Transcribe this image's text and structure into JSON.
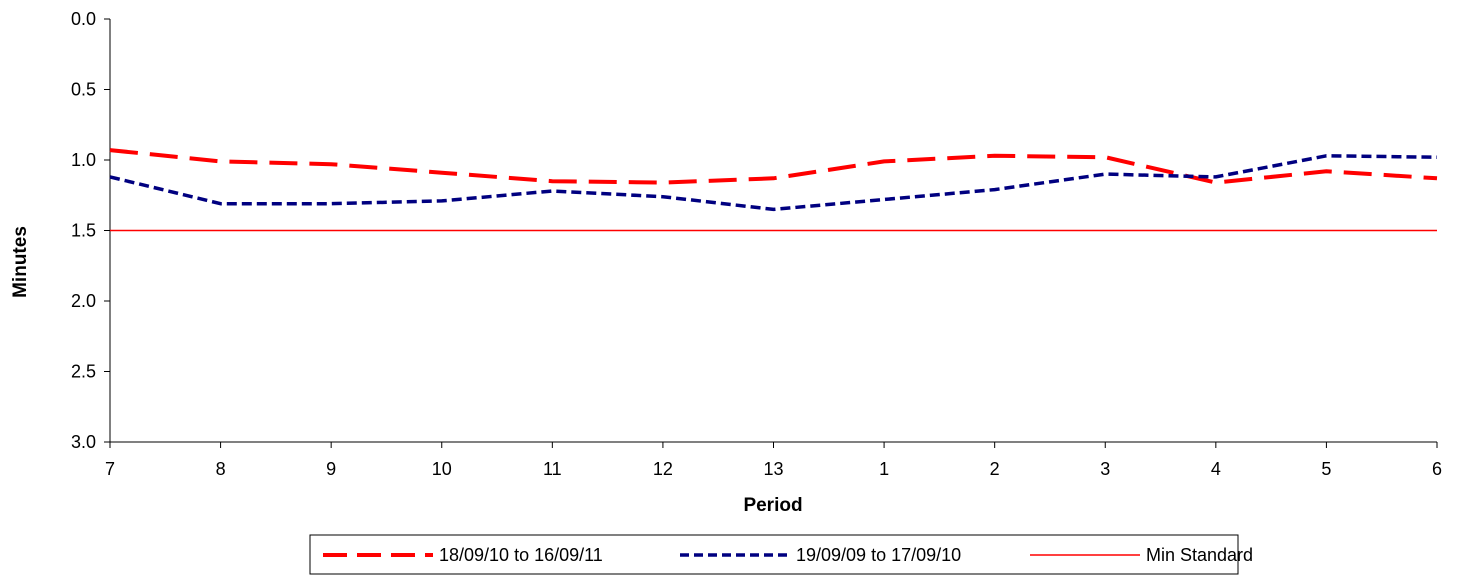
{
  "chart_data": {
    "type": "line",
    "xlabel": "Period",
    "ylabel": "Minutes",
    "categories": [
      "7",
      "8",
      "9",
      "10",
      "11",
      "12",
      "13",
      "1",
      "2",
      "3",
      "4",
      "5",
      "6"
    ],
    "ylim": [
      0,
      3
    ],
    "y_inverted": true,
    "yticks": [
      "0.0",
      "0.5",
      "1.0",
      "1.5",
      "2.0",
      "2.5",
      "3.0"
    ],
    "grid": false,
    "legend_position": "bottom",
    "series": [
      {
        "name": "18/09/10 to 16/09/11",
        "color": "#ff0000",
        "style": "long-dash",
        "values": [
          0.93,
          1.01,
          1.03,
          1.09,
          1.15,
          1.16,
          1.13,
          1.01,
          0.97,
          0.98,
          1.16,
          1.08,
          1.13
        ]
      },
      {
        "name": "19/09/09 to 17/09/10",
        "color": "#000080",
        "style": "short-dash",
        "values": [
          1.12,
          1.31,
          1.31,
          1.29,
          1.22,
          1.26,
          1.35,
          1.28,
          1.21,
          1.1,
          1.12,
          0.97,
          0.98
        ]
      },
      {
        "name": "Min Standard",
        "color": "#ff0000",
        "style": "solid",
        "values": [
          1.5,
          1.5,
          1.5,
          1.5,
          1.5,
          1.5,
          1.5,
          1.5,
          1.5,
          1.5,
          1.5,
          1.5,
          1.5
        ]
      }
    ]
  }
}
